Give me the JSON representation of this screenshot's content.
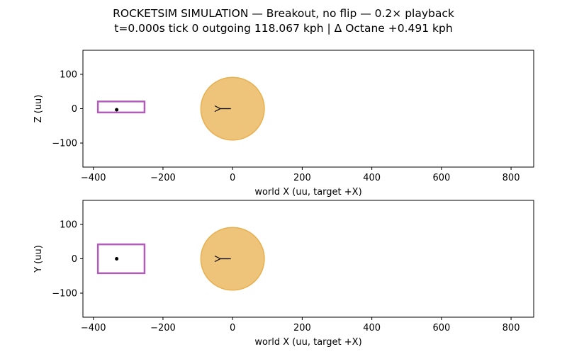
{
  "figure": {
    "title_line1": "ROCKETSIM SIMULATION — Breakout, no flip — 0.2× playback",
    "title_line2": "t=0.000s  tick 0    outgoing 118.067 kph  |  Δ Octane +0.491 kph"
  },
  "colors": {
    "ball_fill": "#e8b04f",
    "ball_edge": "#e8b04f",
    "car_box": "#b05cb8",
    "marker": "#000000"
  },
  "chart_data": [
    {
      "type": "scatter",
      "view": "side",
      "xlabel": "world X (uu, target +X)",
      "ylabel": "Z (uu)",
      "xlim": [
        -430,
        865
      ],
      "ylim": [
        -170,
        170
      ],
      "xticks": [
        -400,
        -200,
        0,
        200,
        400,
        600,
        800
      ],
      "yticks": [
        -100,
        0,
        100
      ],
      "tick_labels_x": [
        "−400",
        "−200",
        "0",
        "200",
        "400",
        "600",
        "800"
      ],
      "tick_labels_y": [
        "−100",
        "0",
        "100"
      ],
      "grid": false,
      "ball": {
        "x": 0,
        "y": 0,
        "radius": 91.25
      },
      "ball_arrow": {
        "from_x": -5,
        "to_x": -35,
        "y": 0
      },
      "car_box": {
        "x_min": -387,
        "x_max": -253,
        "y_min": -11,
        "y_max": 21
      },
      "car_center": {
        "x": -333,
        "y": -3
      }
    },
    {
      "type": "scatter",
      "view": "top",
      "xlabel": "world X (uu, target +X)",
      "ylabel": "Y (uu)",
      "xlim": [
        -430,
        865
      ],
      "ylim": [
        -170,
        170
      ],
      "xticks": [
        -400,
        -200,
        0,
        200,
        400,
        600,
        800
      ],
      "yticks": [
        -100,
        0,
        100
      ],
      "tick_labels_x": [
        "−400",
        "−200",
        "0",
        "200",
        "400",
        "600",
        "800"
      ],
      "tick_labels_y": [
        "−100",
        "0",
        "100"
      ],
      "grid": false,
      "ball": {
        "x": 0,
        "y": 0,
        "radius": 91.25
      },
      "ball_arrow": {
        "from_x": -5,
        "to_x": -35,
        "y": 0
      },
      "car_box": {
        "x_min": -387,
        "x_max": -253,
        "y_min": -42,
        "y_max": 42
      },
      "car_center": {
        "x": -333,
        "y": 0
      }
    }
  ]
}
